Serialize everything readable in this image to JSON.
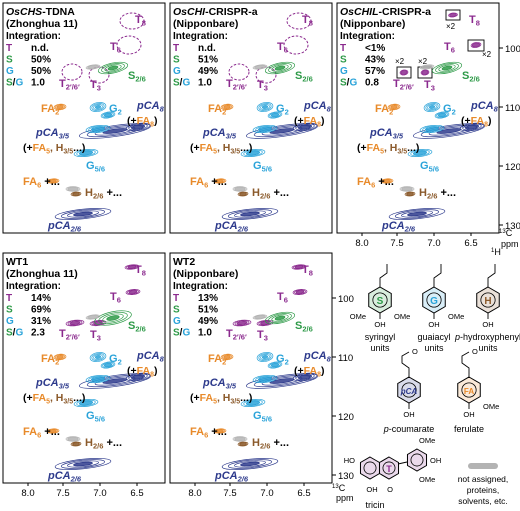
{
  "colors": {
    "T": "#8b2a8e",
    "S": "#2e9a48",
    "G": "#2aa3d9",
    "FA": "#e88a2a",
    "pCA": "#2d3a8c",
    "H": "#8b5a2b",
    "gray": "#b3b3b3",
    "black": "#000000"
  },
  "panels": [
    {
      "id": "p1",
      "title_pre": "",
      "title_italic": "OsCHS",
      "title_post": "-TDNA",
      "subtitle": "(Zhonghua 11)",
      "integration_label": "Integration:",
      "values": [
        {
          "key": "T",
          "value": "n.d."
        },
        {
          "key": "S",
          "value": "50%"
        },
        {
          "key": "G",
          "value": "50%"
        },
        {
          "key": "S/G",
          "value": "1.0"
        }
      ]
    },
    {
      "id": "p2",
      "title_pre": "",
      "title_italic": "OsCHI",
      "title_post": "-CRISPR-a",
      "subtitle": "(Nipponbare)",
      "integration_label": "Integration:",
      "values": [
        {
          "key": "T",
          "value": "n.d."
        },
        {
          "key": "S",
          "value": "51%"
        },
        {
          "key": "G",
          "value": "49%"
        },
        {
          "key": "S/G",
          "value": "1.0"
        }
      ]
    },
    {
      "id": "p3",
      "title_pre": "",
      "title_italic": "OsCHIL",
      "title_post": "-CRISPR-a",
      "subtitle": "(Nipponbare)",
      "integration_label": "Integration:",
      "values": [
        {
          "key": "T",
          "value": "<1%"
        },
        {
          "key": "S",
          "value": "43%"
        },
        {
          "key": "G",
          "value": "57%"
        },
        {
          "key": "S/G",
          "value": "0.8"
        }
      ],
      "zoom_label": "×2"
    },
    {
      "id": "p4",
      "title_pre": "WT1",
      "title_italic": "",
      "title_post": "",
      "subtitle": "(Zhonghua 11)",
      "integration_label": "Integration:",
      "values": [
        {
          "key": "T",
          "value": "14%"
        },
        {
          "key": "S",
          "value": "69%"
        },
        {
          "key": "G",
          "value": "31%"
        },
        {
          "key": "S/G",
          "value": "2.3"
        }
      ]
    },
    {
      "id": "p5",
      "title_pre": "WT2",
      "title_italic": "",
      "title_post": "",
      "subtitle": "(Nipponbare)",
      "integration_label": "Integration:",
      "values": [
        {
          "key": "T",
          "value": "13%"
        },
        {
          "key": "S",
          "value": "51%"
        },
        {
          "key": "G",
          "value": "49%"
        },
        {
          "key": "S/G",
          "value": "1.0"
        }
      ]
    }
  ],
  "peaks": {
    "T8": "T",
    "T8_sub": "8",
    "T6": "T",
    "T6_sub": "6",
    "T2p6p": "T",
    "T2p6p_sub": "2′/6′",
    "T3": "T",
    "T3_sub": "3",
    "S26": "S",
    "S26_sub": "2/6",
    "FA2": "FA",
    "FA2_sub": "2",
    "G2": "G",
    "G2_sub": "2",
    "pCA8": "pCA",
    "pCA8_sub": "8",
    "pCA8_extra_pre": "(+",
    "pCA8_extra_fa": "FA",
    "pCA8_extra_sub": "8",
    "pCA8_extra_post": ")",
    "pCA35": "pCA",
    "pCA35_sub": "3/5",
    "pCA35_extra_pre": "(+",
    "pCA35_extra_fa": "FA",
    "pCA35_extra_fa_sub": "5",
    "pCA35_extra_mid": ", H",
    "pCA35_extra_h_sub": "3/5",
    "pCA35_extra_post": "...)",
    "G56": "G",
    "G56_sub": "5/6",
    "FA6": "FA",
    "FA6_sub": "6",
    "FA6_more": " +...",
    "H26": "H",
    "H26_sub": "2/6",
    "H26_more": " +...",
    "pCA26": "pCA",
    "pCA26_sub": "2/6"
  },
  "axes": {
    "y_unit_c": "13",
    "y_unit": "C",
    "y_unit_h": "1",
    "y_unit_hsym": "H",
    "ppm": "ppm",
    "y_ticks_top": [
      "100",
      "110",
      "120",
      "130"
    ],
    "y_ticks_bottom": [
      "100",
      "110",
      "120",
      "130"
    ],
    "x_ticks": [
      "8.0",
      "7.5",
      "7.0",
      "6.5"
    ]
  },
  "structures": {
    "syringyl": "syringyl units",
    "syringyl_l1": "syringyl",
    "syringyl_l2": "units",
    "syringyl_letter": "S",
    "guaiacyl_l1": "guaiacyl",
    "guaiacyl_l2": "units",
    "guaiacyl_letter": "G",
    "hydroxy_l1": "p-hydroxyphenyl",
    "hydroxy_l2": "units",
    "hydroxy_letter": "H",
    "coumarate": "p-coumarate",
    "coumarate_letter": "pCA",
    "ferulate": "ferulate",
    "ferulate_letter": "FA",
    "tricin": "tricin",
    "tricin_letter": "T",
    "not_assigned_l1": "not assigned,",
    "not_assigned_l2": "proteins,",
    "not_assigned_l3": "solvents, etc.",
    "ome": "OMe",
    "oh": "OH",
    "ho": "HO",
    "o": "O"
  }
}
